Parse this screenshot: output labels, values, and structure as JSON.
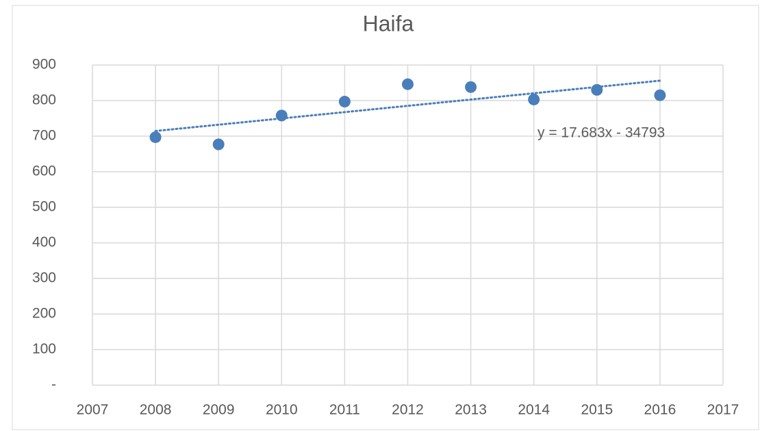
{
  "chart_data": {
    "type": "scatter",
    "title": "Haifa",
    "x": [
      2008,
      2009,
      2010,
      2011,
      2012,
      2013,
      2014,
      2015,
      2016
    ],
    "values": [
      697,
      677,
      758,
      797,
      846,
      838,
      803,
      830,
      815
    ],
    "color": "#4a7ebb",
    "xlim": [
      2007,
      2017
    ],
    "xticks": [
      2007,
      2008,
      2009,
      2010,
      2011,
      2012,
      2013,
      2014,
      2015,
      2016,
      2017
    ],
    "ylim": [
      0,
      900
    ],
    "yticks": [
      {
        "value": 0,
        "label": "-"
      },
      100,
      200,
      300,
      400,
      500,
      600,
      700,
      800,
      900
    ],
    "grid": true,
    "trendline": {
      "label": "y = 17.683x - 34793",
      "slope": 17.683,
      "intercept": -34793
    }
  }
}
